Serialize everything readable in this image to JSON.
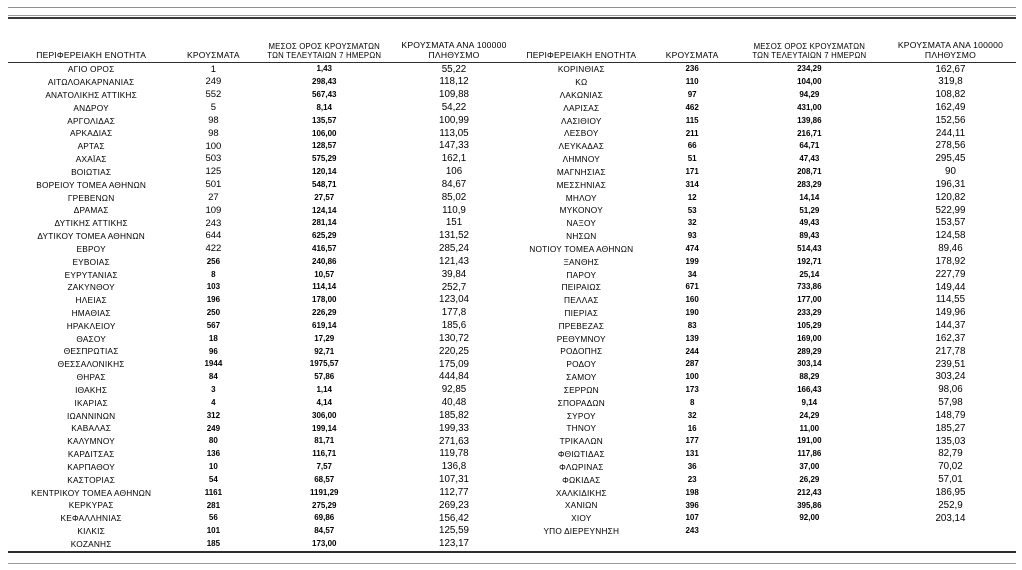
{
  "headers": {
    "region": "ΠΕΡΙΦΕΡΕΙΑΚΗ ΕΝΟΤΗΤΑ",
    "cases": "ΚΡΟΥΣΜΑΤΑ",
    "avg7_line1": "ΜΕΣΟΣ ΟΡΟΣ ΚΡΟΥΣΜΑΤΩΝ",
    "avg7_line2": "ΤΩΝ ΤΕΛΕΥΤΑΙΩΝ 7 ΗΜΕΡΩΝ",
    "per100k_line1": "ΚΡΟΥΣΜΑΤΑ ΑΝΑ 100000",
    "per100k_line2": "ΠΛΗΘΥΣΜΟ"
  },
  "tables": {
    "left": {
      "rows": [
        [
          "ΑΓΙΟ ΟΡΟΣ",
          "1",
          "1,43",
          "55,22"
        ],
        [
          "ΑΙΤΩΛΟΑΚΑΡΝΑΝΙΑΣ",
          "249",
          "298,43",
          "118,12"
        ],
        [
          "ΑΝΑΤΟΛΙΚΗΣ ΑΤΤΙΚΗΣ",
          "552",
          "567,43",
          "109,88"
        ],
        [
          "ΑΝΔΡΟΥ",
          "5",
          "8,14",
          "54,22"
        ],
        [
          "ΑΡΓΟΛΙΔΑΣ",
          "98",
          "135,57",
          "100,99"
        ],
        [
          "ΑΡΚΑΔΙΑΣ",
          "98",
          "106,00",
          "113,05"
        ],
        [
          "ΑΡΤΑΣ",
          "100",
          "128,57",
          "147,33"
        ],
        [
          "ΑΧΑΪΑΣ",
          "503",
          "575,29",
          "162,1"
        ],
        [
          "ΒΟΙΩΤΙΑΣ",
          "125",
          "120,14",
          "106"
        ],
        [
          "ΒΟΡΕΙΟΥ ΤΟΜΕΑ ΑΘΗΝΩΝ",
          "501",
          "548,71",
          "84,67"
        ],
        [
          "ΓΡΕΒΕΝΩΝ",
          "27",
          "27,57",
          "85,02"
        ],
        [
          "ΔΡΑΜΑΣ",
          "109",
          "124,14",
          "110,9"
        ],
        [
          "ΔΥΤΙΚΗΣ ΑΤΤΙΚΗΣ",
          "243",
          "281,14",
          "151"
        ],
        [
          "ΔΥΤΙΚΟΥ ΤΟΜΕΑ ΑΘΗΝΩΝ",
          "644",
          "625,29",
          "131,52"
        ],
        [
          "ΕΒΡΟΥ",
          "422",
          "416,57",
          "285,24"
        ],
        [
          "ΕΥΒΟΙΑΣ",
          "256",
          "240,86",
          "121,43"
        ],
        [
          "ΕΥΡΥΤΑΝΙΑΣ",
          "8",
          "10,57",
          "39,84"
        ],
        [
          "ΖΑΚΥΝΘΟΥ",
          "103",
          "114,14",
          "252,7"
        ],
        [
          "ΗΛΕΙΑΣ",
          "196",
          "178,00",
          "123,04"
        ],
        [
          "ΗΜΑΘΙΑΣ",
          "250",
          "226,29",
          "177,8"
        ],
        [
          "ΗΡΑΚΛΕΙΟΥ",
          "567",
          "619,14",
          "185,6"
        ],
        [
          "ΘΑΣΟΥ",
          "18",
          "17,29",
          "130,72"
        ],
        [
          "ΘΕΣΠΡΩΤΙΑΣ",
          "96",
          "92,71",
          "220,25"
        ],
        [
          "ΘΕΣΣΑΛΟΝΙΚΗΣ",
          "1944",
          "1975,57",
          "175,09"
        ],
        [
          "ΘΗΡΑΣ",
          "84",
          "57,86",
          "444,84"
        ],
        [
          "ΙΘΑΚΗΣ",
          "3",
          "1,14",
          "92,85"
        ],
        [
          "ΙΚΑΡΙΑΣ",
          "4",
          "4,14",
          "40,48"
        ],
        [
          "ΙΩΑΝΝΙΝΩΝ",
          "312",
          "306,00",
          "185,82"
        ],
        [
          "ΚΑΒΑΛΑΣ",
          "249",
          "199,14",
          "199,33"
        ],
        [
          "ΚΑΛΥΜΝΟΥ",
          "80",
          "81,71",
          "271,63"
        ],
        [
          "ΚΑΡΔΙΤΣΑΣ",
          "136",
          "116,71",
          "119,78"
        ],
        [
          "ΚΑΡΠΑΘΟΥ",
          "10",
          "7,57",
          "136,8"
        ],
        [
          "ΚΑΣΤΟΡΙΑΣ",
          "54",
          "68,57",
          "107,31"
        ],
        [
          "ΚΕΝΤΡΙΚΟΥ ΤΟΜΕΑ ΑΘΗΝΩΝ",
          "1161",
          "1191,29",
          "112,77"
        ],
        [
          "ΚΕΡΚΥΡΑΣ",
          "281",
          "275,29",
          "269,23"
        ],
        [
          "ΚΕΦΑΛΛΗΝΙΑΣ",
          "56",
          "69,86",
          "156,42"
        ],
        [
          "ΚΙΛΚΙΣ",
          "101",
          "84,57",
          "125,59"
        ],
        [
          "ΚΟΖΑΝΗΣ",
          "185",
          "173,00",
          "123,17"
        ]
      ]
    },
    "right": {
      "rows": [
        [
          "ΚΟΡΙΝΘΙΑΣ",
          "236",
          "234,29",
          "162,67"
        ],
        [
          "ΚΩ",
          "110",
          "104,00",
          "319,8"
        ],
        [
          "ΛΑΚΩΝΙΑΣ",
          "97",
          "94,29",
          "108,82"
        ],
        [
          "ΛΑΡΙΣΑΣ",
          "462",
          "431,00",
          "162,49"
        ],
        [
          "ΛΑΣΙΘΙΟΥ",
          "115",
          "139,86",
          "152,56"
        ],
        [
          "ΛΕΣΒΟΥ",
          "211",
          "216,71",
          "244,11"
        ],
        [
          "ΛΕΥΚΑΔΑΣ",
          "66",
          "64,71",
          "278,56"
        ],
        [
          "ΛΗΜΝΟΥ",
          "51",
          "47,43",
          "295,45"
        ],
        [
          "ΜΑΓΝΗΣΙΑΣ",
          "171",
          "208,71",
          "90"
        ],
        [
          "ΜΕΣΣΗΝΙΑΣ",
          "314",
          "283,29",
          "196,31"
        ],
        [
          "ΜΗΛΟΥ",
          "12",
          "14,14",
          "120,82"
        ],
        [
          "ΜΥΚΟΝΟΥ",
          "53",
          "51,29",
          "522,99"
        ],
        [
          "ΝΑΞΟΥ",
          "32",
          "49,43",
          "153,57"
        ],
        [
          "ΝΗΣΩΝ",
          "93",
          "89,43",
          "124,58"
        ],
        [
          "ΝΟΤΙΟΥ ΤΟΜΕΑ ΑΘΗΝΩΝ",
          "474",
          "514,43",
          "89,46"
        ],
        [
          "ΞΑΝΘΗΣ",
          "199",
          "192,71",
          "178,92"
        ],
        [
          "ΠΑΡΟΥ",
          "34",
          "25,14",
          "227,79"
        ],
        [
          "ΠΕΙΡΑΙΩΣ",
          "671",
          "733,86",
          "149,44"
        ],
        [
          "ΠΕΛΛΑΣ",
          "160",
          "177,00",
          "114,55"
        ],
        [
          "ΠΙΕΡΙΑΣ",
          "190",
          "233,29",
          "149,96"
        ],
        [
          "ΠΡΕΒΕΖΑΣ",
          "83",
          "105,29",
          "144,37"
        ],
        [
          "ΡΕΘΥΜΝΟΥ",
          "139",
          "169,00",
          "162,37"
        ],
        [
          "ΡΟΔΟΠΗΣ",
          "244",
          "289,29",
          "217,78"
        ],
        [
          "ΡΟΔΟΥ",
          "287",
          "303,14",
          "239,51"
        ],
        [
          "ΣΑΜΟΥ",
          "100",
          "88,29",
          "303,24"
        ],
        [
          "ΣΕΡΡΩΝ",
          "173",
          "166,43",
          "98,06"
        ],
        [
          "ΣΠΟΡΑΔΩΝ",
          "8",
          "9,14",
          "57,98"
        ],
        [
          "ΣΥΡΟΥ",
          "32",
          "24,29",
          "148,79"
        ],
        [
          "ΤΗΝΟΥ",
          "16",
          "11,00",
          "185,27"
        ],
        [
          "ΤΡΙΚΑΛΩΝ",
          "177",
          "191,00",
          "135,03"
        ],
        [
          "ΦΘΙΩΤΙΔΑΣ",
          "131",
          "117,86",
          "82,79"
        ],
        [
          "ΦΛΩΡΙΝΑΣ",
          "36",
          "37,00",
          "70,02"
        ],
        [
          "ΦΩΚΙΔΑΣ",
          "23",
          "26,29",
          "57,01"
        ],
        [
          "ΧΑΛΚΙΔΙΚΗΣ",
          "198",
          "212,43",
          "186,95"
        ],
        [
          "ΧΑΝΙΩΝ",
          "396",
          "395,86",
          "252,9"
        ],
        [
          "ΧΙΟΥ",
          "107",
          "92,00",
          "203,14"
        ],
        [
          "ΥΠΟ ΔΙΕΡΕΥΝΗΣΗ",
          "243",
          "",
          ""
        ]
      ]
    }
  },
  "colors": {
    "text": "#000000",
    "rule_dark": "#2e2e2e",
    "rule_light": "#9a9a9a"
  }
}
